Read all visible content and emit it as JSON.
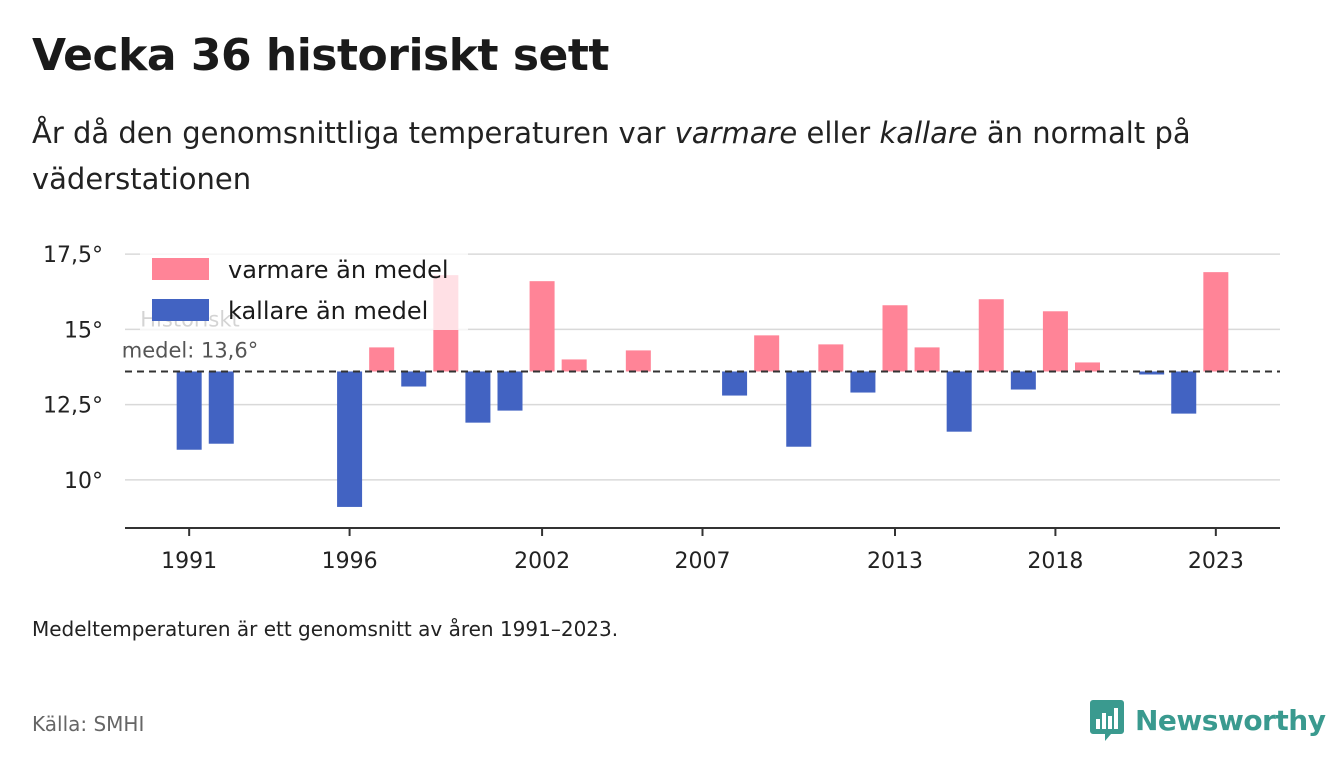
{
  "header": {
    "title": "Vecka 36 historiskt sett",
    "subtitle_pre": "År då den genomsnittliga temperaturen var ",
    "subtitle_warm": "varmare",
    "subtitle_mid": " eller ",
    "subtitle_cold": "kallare",
    "subtitle_post": " än normalt på väderstationen"
  },
  "footer": {
    "footnote": "Medeltemperaturen är ett genomsnitt av åren 1991–2023.",
    "source": "Källa: SMHI",
    "brand": "Newsworthy",
    "brand_icon": "newsworthy-bar-chart-icon",
    "brand_color": "#3a9a8f"
  },
  "chart_data": {
    "type": "bar",
    "baseline": 13.6,
    "baseline_label_line1": "Historiskt",
    "baseline_label_line2": "medel: 13,6°",
    "ylim": [
      8.4,
      18.3
    ],
    "yticks": [
      10,
      12.5,
      15,
      17.5
    ],
    "ytick_labels": [
      "10°",
      "12,5°",
      "15°",
      "17,5°"
    ],
    "xticks": [
      1991,
      1996,
      2002,
      2007,
      2013,
      2018,
      2023
    ],
    "xtick_labels": [
      "1991",
      "1996",
      "2002",
      "2007",
      "2013",
      "2018",
      "2023"
    ],
    "grid": true,
    "legend_position": "top-left",
    "colors": {
      "warm": "#ff8497",
      "cold": "#4263c2",
      "baseline": "#333333",
      "grid": "#d9d9d9"
    },
    "series": [
      {
        "name": "varmare än medel",
        "key": "warm"
      },
      {
        "name": "kallare än medel",
        "key": "cold"
      }
    ],
    "x": [
      1991,
      1992,
      1996,
      1997,
      1998,
      1999,
      2000,
      2001,
      2002,
      2003,
      2005,
      2008,
      2009,
      2010,
      2011,
      2012,
      2013,
      2014,
      2015,
      2016,
      2017,
      2018,
      2019,
      2021,
      2022,
      2023
    ],
    "values": [
      11.0,
      11.2,
      9.1,
      14.4,
      13.1,
      16.8,
      11.9,
      12.3,
      16.6,
      14.0,
      14.3,
      12.8,
      14.8,
      11.1,
      14.5,
      12.9,
      15.8,
      14.4,
      11.6,
      16.0,
      13.0,
      15.6,
      13.9,
      13.5,
      12.2,
      16.9
    ]
  }
}
